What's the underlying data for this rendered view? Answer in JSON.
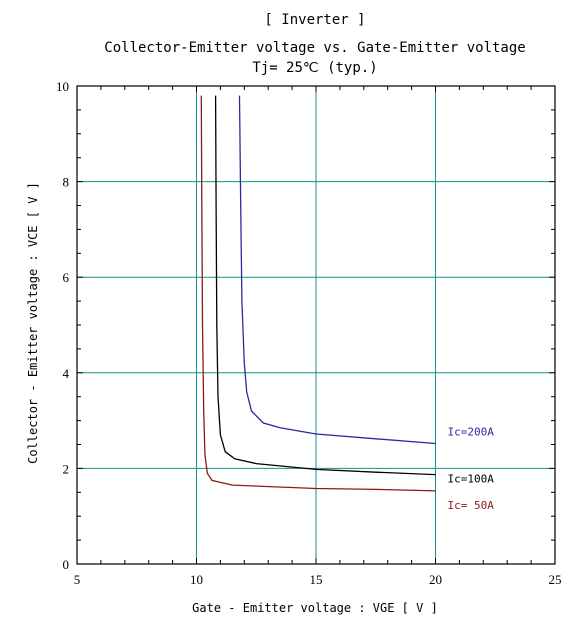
{
  "chart_data": {
    "type": "line",
    "title_lines": [
      "[ Inverter ]",
      "Collector-Emitter voltage  vs. Gate-Emitter voltage",
      "Tj= 25℃  (typ.)"
    ],
    "xlabel": "Gate - Emitter voltage  :  VGE  [ V ]",
    "ylabel": "Collector - Emitter voltage  :  VCE  [ V ]",
    "xlim": [
      5,
      25
    ],
    "ylim": [
      0,
      10
    ],
    "x_ticks": [
      5,
      10,
      15,
      20,
      25
    ],
    "y_ticks": [
      0,
      2,
      4,
      6,
      8,
      10
    ],
    "grid": true,
    "series": [
      {
        "name": "Ic=200A",
        "color": "#2b2b9e",
        "points": [
          [
            11.8,
            9.8
          ],
          [
            11.85,
            7.5
          ],
          [
            11.9,
            5.5
          ],
          [
            12.0,
            4.2
          ],
          [
            12.1,
            3.6
          ],
          [
            12.3,
            3.2
          ],
          [
            12.8,
            2.95
          ],
          [
            13.5,
            2.85
          ],
          [
            15.0,
            2.72
          ],
          [
            17.5,
            2.62
          ],
          [
            20.0,
            2.52
          ]
        ]
      },
      {
        "name": "Ic=100A",
        "color": "#000000",
        "points": [
          [
            10.8,
            9.8
          ],
          [
            10.82,
            7.5
          ],
          [
            10.85,
            5.0
          ],
          [
            10.9,
            3.5
          ],
          [
            11.0,
            2.7
          ],
          [
            11.2,
            2.35
          ],
          [
            11.6,
            2.2
          ],
          [
            12.5,
            2.1
          ],
          [
            15.0,
            1.98
          ],
          [
            17.5,
            1.92
          ],
          [
            20.0,
            1.87
          ]
        ]
      },
      {
        "name": "Ic= 50A",
        "color": "#8b1a1a",
        "points": [
          [
            10.2,
            9.8
          ],
          [
            10.22,
            7.5
          ],
          [
            10.25,
            5.0
          ],
          [
            10.3,
            3.2
          ],
          [
            10.35,
            2.3
          ],
          [
            10.45,
            1.9
          ],
          [
            10.65,
            1.75
          ],
          [
            11.5,
            1.65
          ],
          [
            15.0,
            1.58
          ],
          [
            17.5,
            1.56
          ],
          [
            20.0,
            1.53
          ]
        ]
      }
    ]
  }
}
